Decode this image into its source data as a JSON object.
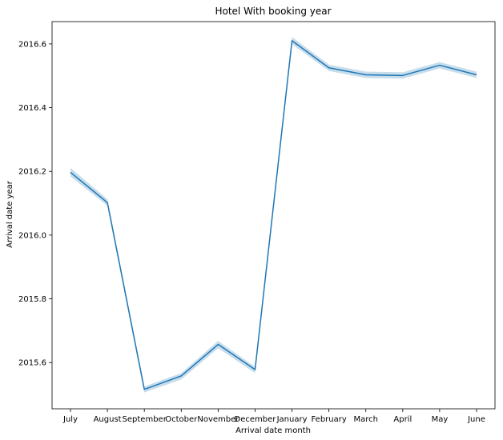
{
  "chart_data": {
    "type": "line",
    "title": "Hotel With booking year",
    "xlabel": "Arrival date month",
    "ylabel": "Arrival date year",
    "categories": [
      "July",
      "August",
      "September",
      "October",
      "November",
      "December",
      "January",
      "February",
      "March",
      "April",
      "May",
      "June"
    ],
    "series": [
      {
        "values": [
          2016.197,
          2016.102,
          2015.516,
          2015.558,
          2015.657,
          2015.578,
          2016.61,
          2016.525,
          2016.503,
          2016.501,
          2016.533,
          2016.503
        ],
        "ci_lower": [
          2016.184,
          2016.092,
          2015.506,
          2015.547,
          2015.645,
          2015.567,
          2016.599,
          2016.515,
          2016.493,
          2016.491,
          2016.523,
          2016.493
        ],
        "ci_upper": [
          2016.211,
          2016.113,
          2015.525,
          2015.567,
          2015.668,
          2015.587,
          2016.622,
          2016.535,
          2016.513,
          2016.511,
          2016.543,
          2016.513
        ],
        "color": "#1f77b4"
      }
    ],
    "yticks": [
      2015.6,
      2015.8,
      2016.0,
      2016.2,
      2016.4,
      2016.6
    ],
    "ytick_labels": [
      "2015.6",
      "2015.8",
      "2016.0",
      "2016.2",
      "2016.4",
      "2016.6"
    ],
    "ylim": [
      2015.455,
      2016.67
    ],
    "grid": false,
    "legend": "none"
  }
}
